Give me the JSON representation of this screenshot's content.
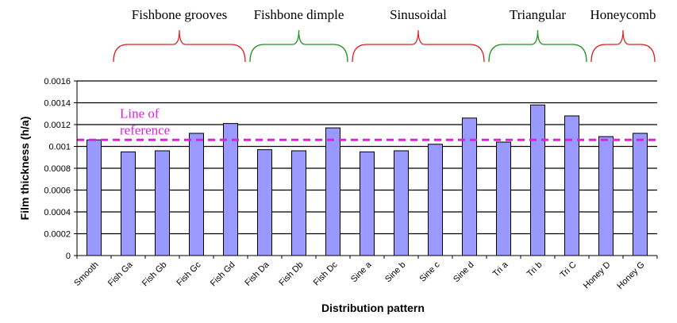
{
  "chart_data": {
    "type": "bar",
    "ylabel": "Film thickness (h/a)",
    "xlabel": "Distribution pattern",
    "ylim": [
      0,
      0.0016
    ],
    "yticks": [
      "0",
      "0.0002",
      "0.0004",
      "0.0006",
      "0.0008",
      "0.001",
      "0.0012",
      "0.0014",
      "0.0016"
    ],
    "grid": true,
    "categories": [
      "Smooth",
      "Fish Ga",
      "Fish Gb",
      "Fish Gc",
      "Fish Gd",
      "Fish Da",
      "Fish Db",
      "Fish Dc",
      "Sine a",
      "Sine b",
      "Sine c",
      "Sine d",
      "Tri a",
      "Tri b",
      "Tri C",
      "Honey D",
      "Honey G"
    ],
    "values": [
      0.00106,
      0.00095,
      0.00096,
      0.00112,
      0.00121,
      0.00097,
      0.00096,
      0.00117,
      0.00095,
      0.00096,
      0.00102,
      0.00126,
      0.00104,
      0.00138,
      0.00128,
      0.00109,
      0.00112
    ],
    "bar_color": "#9999ff",
    "reference_line": {
      "label_line1": "Line of",
      "label_line2": "reference",
      "value": 0.00106,
      "color": "#e020e0"
    },
    "groups": [
      {
        "label": "Fishbone grooves",
        "first": 1,
        "last": 4,
        "color": "#e02020"
      },
      {
        "label": "Fishbone dimple",
        "first": 5,
        "last": 7,
        "color": "#209020"
      },
      {
        "label": "Sinusoidal",
        "first": 8,
        "last": 11,
        "color": "#e02020"
      },
      {
        "label": "Triangular",
        "first": 12,
        "last": 14,
        "color": "#209020"
      },
      {
        "label": "Honeycomb",
        "first": 15,
        "last": 16,
        "color": "#e02020"
      }
    ]
  }
}
